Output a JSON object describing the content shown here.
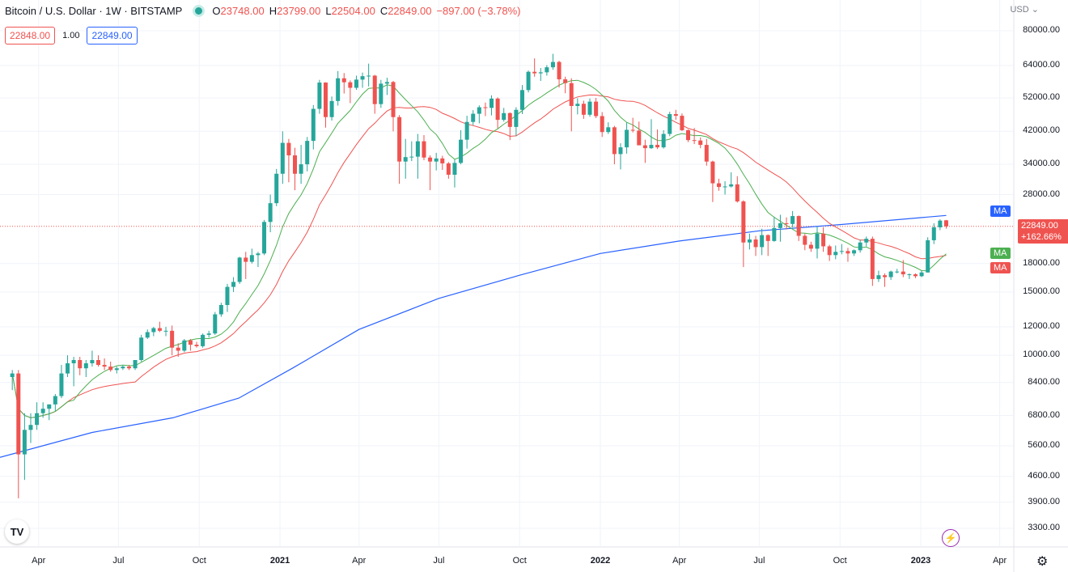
{
  "legend": {
    "symbol": "Bitcoin / U.S. Dollar · 1W · BITSTAMP",
    "o_label": "O",
    "o_value": "23748.00",
    "h_label": "H",
    "h_value": "23799.00",
    "l_label": "L",
    "l_value": "22504.00",
    "c_label": "C",
    "c_value": "22849.00",
    "change": "−897.00 (−3.78%)"
  },
  "trade": {
    "sell": "22848.00",
    "spread": "1.00",
    "buy": "22849.00"
  },
  "currency": "USD",
  "price_axis": [
    "80000.00",
    "64000.00",
    "52000.00",
    "42000.00",
    "34000.00",
    "28000.00",
    "22849.00",
    "18000.00",
    "15000.00",
    "12000.00",
    "10000.00",
    "8400.00",
    "6800.00",
    "5600.00",
    "4600.00",
    "3900.00",
    "3300.00"
  ],
  "time_axis": [
    {
      "label": "Apr",
      "bold": false
    },
    {
      "label": "Jul",
      "bold": false
    },
    {
      "label": "Oct",
      "bold": false
    },
    {
      "label": "2021",
      "bold": true
    },
    {
      "label": "Apr",
      "bold": false
    },
    {
      "label": "Jul",
      "bold": false
    },
    {
      "label": "Oct",
      "bold": false
    },
    {
      "label": "2022",
      "bold": true
    },
    {
      "label": "Apr",
      "bold": false
    },
    {
      "label": "Jul",
      "bold": false
    },
    {
      "label": "Oct",
      "bold": false
    },
    {
      "label": "2023",
      "bold": true
    },
    {
      "label": "Apr",
      "bold": false
    }
  ],
  "last_price": {
    "price": "22849.00",
    "change": "+162.66%"
  },
  "indicator_tags": [
    "MA",
    "MA",
    "MA"
  ],
  "colors": {
    "up": "#26a69a",
    "down": "#ef5350",
    "ma_long": "#2962ff",
    "ma_fast": "#4caf50",
    "ma_slow": "#ef5350"
  },
  "icons": [
    "tradingview-logo-icon",
    "lightning-icon",
    "gear-icon"
  ],
  "chart_data": {
    "type": "candlestick",
    "timeframe": "1W",
    "y_scale": "log",
    "ylim": [
      3000,
      90000
    ],
    "x_range": [
      "2020-02-17",
      "2023-04-17"
    ],
    "candles": [
      [
        "2020-03-02",
        8700,
        9100,
        8000,
        8900
      ],
      [
        "2020-03-09",
        8900,
        9100,
        4000,
        5300
      ],
      [
        "2020-03-16",
        5300,
        6900,
        4500,
        6200
      ],
      [
        "2020-03-23",
        6200,
        6900,
        5700,
        6400
      ],
      [
        "2020-03-30",
        6400,
        7400,
        6200,
        6900
      ],
      [
        "2020-04-06",
        6900,
        7400,
        6700,
        7100
      ],
      [
        "2020-04-13",
        7100,
        7300,
        6600,
        7300
      ],
      [
        "2020-04-20",
        7300,
        7800,
        7000,
        7700
      ],
      [
        "2020-04-27",
        7700,
        9400,
        7600,
        8900
      ],
      [
        "2020-05-04",
        8900,
        10000,
        8700,
        9500
      ],
      [
        "2020-05-11",
        9500,
        9900,
        8200,
        9700
      ],
      [
        "2020-05-18",
        9700,
        9900,
        8800,
        9200
      ],
      [
        "2020-05-25",
        9200,
        9700,
        8700,
        9500
      ],
      [
        "2020-06-01",
        9500,
        10300,
        9300,
        9700
      ],
      [
        "2020-06-08",
        9700,
        10000,
        9300,
        9400
      ],
      [
        "2020-06-15",
        9400,
        9800,
        9100,
        9300
      ],
      [
        "2020-06-22",
        9300,
        9600,
        9000,
        9100
      ],
      [
        "2020-06-29",
        9100,
        9300,
        8900,
        9200
      ],
      [
        "2020-07-06",
        9200,
        9400,
        9100,
        9300
      ],
      [
        "2020-07-13",
        9300,
        9400,
        9100,
        9200
      ],
      [
        "2020-07-20",
        9200,
        9700,
        9100,
        9700
      ],
      [
        "2020-07-27",
        9700,
        11400,
        9600,
        11200
      ],
      [
        "2020-08-03",
        11200,
        11800,
        11100,
        11600
      ],
      [
        "2020-08-10",
        11600,
        12000,
        11300,
        11900
      ],
      [
        "2020-08-17",
        11900,
        12400,
        11600,
        11700
      ],
      [
        "2020-08-24",
        11700,
        12000,
        11300,
        11700
      ],
      [
        "2020-08-31",
        11700,
        12100,
        10000,
        10500
      ],
      [
        "2020-09-07",
        10500,
        10800,
        9900,
        10300
      ],
      [
        "2020-09-14",
        10300,
        11100,
        10200,
        11000
      ],
      [
        "2020-09-21",
        11000,
        11100,
        10300,
        10700
      ],
      [
        "2020-09-28",
        10700,
        10900,
        10500,
        10600
      ],
      [
        "2020-10-05",
        10600,
        11500,
        10500,
        11400
      ],
      [
        "2020-10-12",
        11400,
        11700,
        11200,
        11500
      ],
      [
        "2020-10-19",
        11500,
        13200,
        11400,
        13000
      ],
      [
        "2020-10-26",
        13000,
        14000,
        12800,
        13800
      ],
      [
        "2020-11-02",
        13800,
        15800,
        13200,
        15500
      ],
      [
        "2020-11-09",
        15500,
        16500,
        15000,
        16000
      ],
      [
        "2020-11-16",
        16000,
        18800,
        15800,
        18700
      ],
      [
        "2020-11-23",
        18700,
        19400,
        16300,
        18200
      ],
      [
        "2020-11-30",
        18200,
        19800,
        18000,
        19000
      ],
      [
        "2020-12-07",
        19000,
        19400,
        17600,
        19200
      ],
      [
        "2020-12-14",
        19200,
        23800,
        19000,
        23500
      ],
      [
        "2020-12-21",
        23500,
        28000,
        22000,
        26500
      ],
      [
        "2020-12-28",
        26500,
        33000,
        26000,
        32000
      ],
      [
        "2021-01-04",
        32000,
        42000,
        30000,
        39000
      ],
      [
        "2021-01-11",
        39000,
        40000,
        30300,
        36000
      ],
      [
        "2021-01-18",
        36000,
        37800,
        28800,
        32000
      ],
      [
        "2021-01-25",
        32000,
        38500,
        30000,
        34000
      ],
      [
        "2021-02-01",
        34000,
        40500,
        32500,
        39500
      ],
      [
        "2021-02-08",
        39500,
        49700,
        37400,
        48500
      ],
      [
        "2021-02-15",
        48500,
        58400,
        47000,
        57400
      ],
      [
        "2021-02-22",
        57400,
        57500,
        43000,
        46000
      ],
      [
        "2021-03-01",
        46000,
        52500,
        45000,
        51000
      ],
      [
        "2021-03-08",
        51000,
        61800,
        49500,
        59000
      ],
      [
        "2021-03-15",
        59000,
        61000,
        53500,
        57500
      ],
      [
        "2021-03-22",
        57500,
        58200,
        50300,
        55500
      ],
      [
        "2021-03-29",
        55500,
        60000,
        54800,
        58500
      ],
      [
        "2021-04-05",
        58500,
        61200,
        55500,
        59800
      ],
      [
        "2021-04-12",
        59800,
        64800,
        56000,
        60000
      ],
      [
        "2021-04-19",
        60000,
        60300,
        47000,
        50000
      ],
      [
        "2021-04-26",
        50000,
        58400,
        48800,
        57000
      ],
      [
        "2021-05-03",
        57000,
        59200,
        53000,
        57600
      ],
      [
        "2021-05-10",
        57600,
        58000,
        42000,
        46000
      ],
      [
        "2021-05-17",
        46000,
        46600,
        30000,
        34600
      ],
      [
        "2021-05-24",
        34600,
        40000,
        31000,
        35600
      ],
      [
        "2021-05-31",
        35600,
        39400,
        34700,
        35700
      ],
      [
        "2021-06-07",
        35700,
        41300,
        31000,
        39400
      ],
      [
        "2021-06-14",
        39400,
        41000,
        34900,
        35500
      ],
      [
        "2021-06-21",
        35500,
        36000,
        28800,
        34600
      ],
      [
        "2021-06-28",
        34600,
        36600,
        32700,
        35300
      ],
      [
        "2021-07-05",
        35300,
        35900,
        32800,
        34200
      ],
      [
        "2021-07-12",
        34200,
        34500,
        31000,
        31800
      ],
      [
        "2021-07-19",
        31800,
        35000,
        29300,
        34300
      ],
      [
        "2021-07-26",
        34300,
        42300,
        34000,
        39800
      ],
      [
        "2021-08-02",
        39800,
        46400,
        37600,
        44600
      ],
      [
        "2021-08-09",
        44600,
        48100,
        43700,
        47000
      ],
      [
        "2021-08-16",
        47000,
        49600,
        44200,
        49000
      ],
      [
        "2021-08-23",
        49000,
        50500,
        46300,
        48800
      ],
      [
        "2021-08-30",
        48800,
        52900,
        46500,
        51800
      ],
      [
        "2021-09-06",
        51800,
        52200,
        42800,
        45200
      ],
      [
        "2021-09-13",
        45200,
        48800,
        44700,
        47200
      ],
      [
        "2021-09-20",
        47200,
        47400,
        39700,
        43200
      ],
      [
        "2021-09-27",
        43200,
        49000,
        40700,
        48200
      ],
      [
        "2021-10-04",
        48200,
        56500,
        46900,
        54700
      ],
      [
        "2021-10-11",
        54700,
        62000,
        53900,
        61500
      ],
      [
        "2021-10-18",
        61500,
        67000,
        59600,
        60900
      ],
      [
        "2021-10-25",
        60900,
        63000,
        58000,
        61300
      ],
      [
        "2021-11-01",
        61300,
        64200,
        60000,
        63300
      ],
      [
        "2021-11-08",
        63300,
        69000,
        62300,
        65500
      ],
      [
        "2021-11-15",
        65500,
        66000,
        55600,
        58600
      ],
      [
        "2021-11-22",
        58600,
        59600,
        53600,
        57200
      ],
      [
        "2021-11-29",
        57200,
        59000,
        42000,
        49400
      ],
      [
        "2021-12-06",
        49400,
        51900,
        46800,
        50100
      ],
      [
        "2021-12-13",
        50100,
        51100,
        45500,
        46700
      ],
      [
        "2021-12-20",
        46700,
        51800,
        46100,
        50800
      ],
      [
        "2021-12-27",
        50800,
        52000,
        45700,
        46300
      ],
      [
        "2022-01-03",
        46300,
        47500,
        40500,
        41800
      ],
      [
        "2022-01-10",
        41800,
        44500,
        41300,
        43100
      ],
      [
        "2022-01-17",
        43100,
        43500,
        34000,
        36300
      ],
      [
        "2022-01-24",
        36300,
        38900,
        32900,
        37900
      ],
      [
        "2022-01-31",
        37900,
        44400,
        36400,
        42400
      ],
      [
        "2022-02-07",
        42400,
        45800,
        41700,
        42200
      ],
      [
        "2022-02-14",
        42200,
        44700,
        38500,
        38400
      ],
      [
        "2022-02-21",
        38400,
        39800,
        34300,
        37700
      ],
      [
        "2022-02-28",
        37700,
        45400,
        37500,
        38500
      ],
      [
        "2022-03-07",
        38500,
        42500,
        37500,
        37900
      ],
      [
        "2022-03-14",
        37900,
        42300,
        37600,
        41300
      ],
      [
        "2022-03-21",
        41300,
        47600,
        40700,
        46900
      ],
      [
        "2022-03-28",
        46900,
        48200,
        45200,
        46400
      ],
      [
        "2022-04-04",
        46400,
        47100,
        42100,
        42300
      ],
      [
        "2022-04-11",
        42300,
        42500,
        39200,
        39700
      ],
      [
        "2022-04-18",
        39700,
        42900,
        38700,
        39600
      ],
      [
        "2022-04-25",
        39600,
        40400,
        37700,
        38500
      ],
      [
        "2022-05-02",
        38500,
        40000,
        33700,
        34600
      ],
      [
        "2022-05-09",
        34600,
        34800,
        26700,
        30100
      ],
      [
        "2022-05-16",
        30100,
        31000,
        28700,
        29400
      ],
      [
        "2022-05-23",
        29400,
        30500,
        28000,
        29500
      ],
      [
        "2022-05-30",
        29500,
        32300,
        29300,
        29900
      ],
      [
        "2022-06-06",
        29900,
        31500,
        26600,
        26800
      ],
      [
        "2022-06-13",
        26800,
        27000,
        17600,
        20600
      ],
      [
        "2022-06-20",
        20600,
        21800,
        19700,
        21000
      ],
      [
        "2022-06-27",
        21000,
        21500,
        18900,
        20000
      ],
      [
        "2022-07-04",
        20000,
        22500,
        19000,
        21600
      ],
      [
        "2022-07-11",
        21600,
        21700,
        18900,
        20800
      ],
      [
        "2022-07-18",
        20800,
        24300,
        20700,
        22600
      ],
      [
        "2022-07-25",
        22600,
        24600,
        20700,
        23300
      ],
      [
        "2022-08-01",
        23300,
        24200,
        22400,
        23200
      ],
      [
        "2022-08-08",
        23200,
        25200,
        22700,
        24400
      ],
      [
        "2022-08-15",
        24400,
        24500,
        20800,
        21500
      ],
      [
        "2022-08-22",
        21500,
        21800,
        19600,
        20300
      ],
      [
        "2022-08-29",
        20300,
        20700,
        19400,
        19800
      ],
      [
        "2022-09-05",
        19800,
        22800,
        18600,
        21800
      ],
      [
        "2022-09-12",
        21800,
        22700,
        19400,
        20100
      ],
      [
        "2022-09-19",
        20100,
        20300,
        18300,
        19000
      ],
      [
        "2022-09-26",
        19000,
        20200,
        18500,
        19400
      ],
      [
        "2022-10-03",
        19400,
        20400,
        19100,
        19500
      ],
      [
        "2022-10-10",
        19500,
        19900,
        18200,
        19200
      ],
      [
        "2022-10-17",
        19200,
        19700,
        18900,
        19600
      ],
      [
        "2022-10-24",
        19600,
        21000,
        19300,
        20600
      ],
      [
        "2022-10-31",
        20600,
        21400,
        20100,
        21100
      ],
      [
        "2022-11-07",
        21100,
        21400,
        15600,
        16300
      ],
      [
        "2022-11-14",
        16300,
        17200,
        16000,
        16700
      ],
      [
        "2022-11-21",
        16700,
        16900,
        15500,
        16500
      ],
      [
        "2022-11-28",
        16500,
        17200,
        16200,
        17100
      ],
      [
        "2022-12-05",
        17100,
        17400,
        16900,
        17100
      ],
      [
        "2022-12-12",
        17100,
        18400,
        16500,
        16800
      ],
      [
        "2022-12-19",
        16800,
        16900,
        16300,
        16800
      ],
      [
        "2022-12-26",
        16800,
        16900,
        16400,
        16600
      ],
      [
        "2023-01-02",
        16600,
        17200,
        16500,
        17000
      ],
      [
        "2023-01-09",
        17000,
        21300,
        17000,
        20900
      ],
      [
        "2023-01-16",
        20900,
        23300,
        20400,
        22700
      ],
      [
        "2023-01-23",
        22700,
        23900,
        22300,
        23700
      ],
      [
        "2023-01-30",
        23748,
        23799,
        22504,
        22849
      ]
    ]
  }
}
